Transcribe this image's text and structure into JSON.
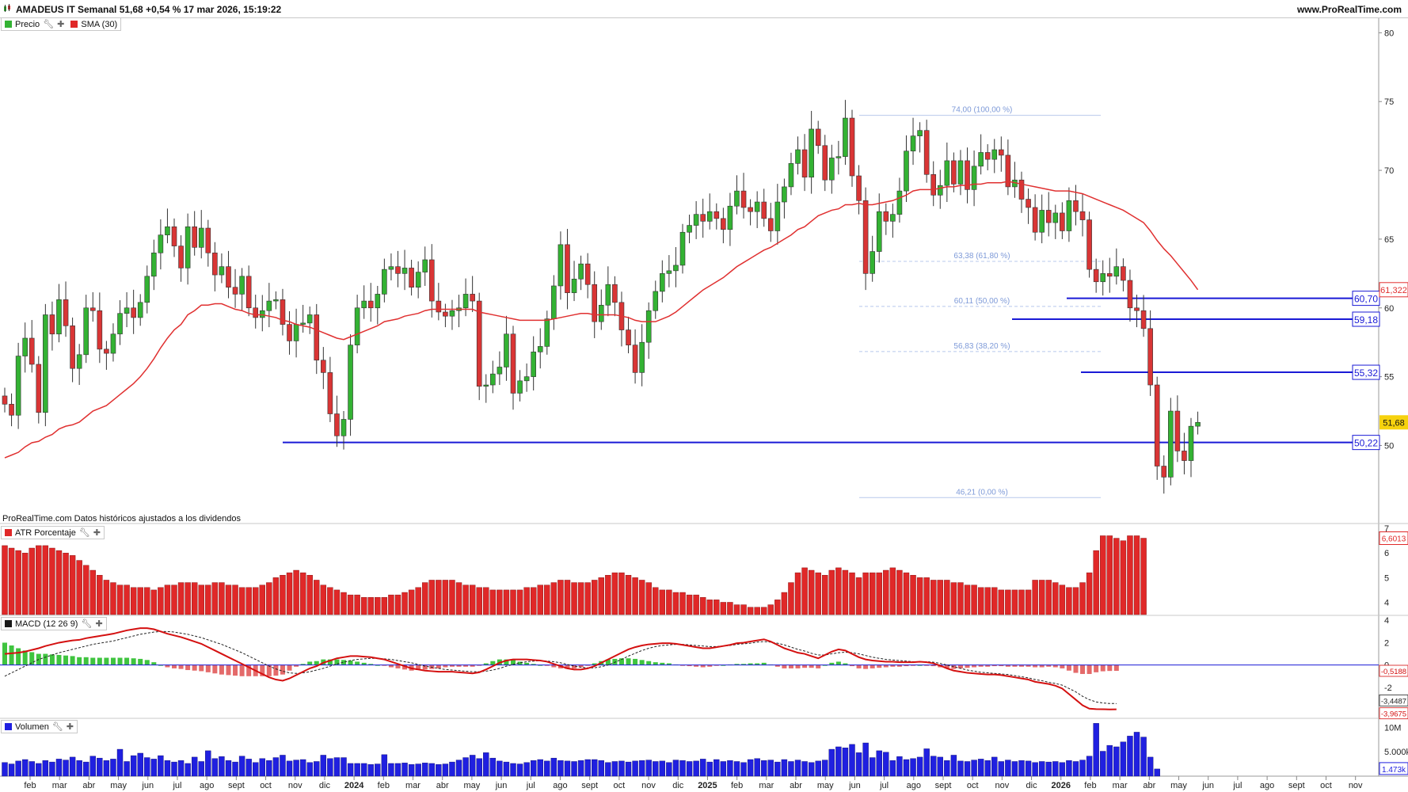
{
  "header": {
    "title": "AMADEUS IT Semanal 51,68 +0,54 % 17 mar 2026, 15:19:22",
    "site": "www.ProRealTime.com"
  },
  "legends": {
    "price": "Precio",
    "sma": "SMA (30)",
    "atr": "ATR Porcentaje",
    "macd": "MACD (12 26 9)",
    "volume": "Volumen"
  },
  "note": "ProRealTime.com Datos históricos ajustados a los dividendos",
  "colors": {
    "bull": "#33b233",
    "bear": "#d93535",
    "sma": "#e03030",
    "level": "#1a1ad6",
    "fib": "#b8c8ec",
    "atr": "#e02828",
    "volume": "#2020e0",
    "macd": "#d41010",
    "signal": "#222222"
  },
  "chart_data": [
    {
      "type": "candlestick",
      "title": "AMADEUS IT Semanal",
      "x_ticks": [
        "feb",
        "mar",
        "abr",
        "may",
        "jun",
        "jul",
        "ago",
        "sept",
        "oct",
        "nov",
        "dic",
        "2024",
        "feb",
        "mar",
        "abr",
        "may",
        "jun",
        "jul",
        "ago",
        "sept",
        "oct",
        "nov",
        "dic",
        "2025",
        "feb",
        "mar",
        "abr",
        "may",
        "jun",
        "jul",
        "ago",
        "sept",
        "oct",
        "nov",
        "dic",
        "2026",
        "feb",
        "mar",
        "abr",
        "may",
        "jun",
        "jul",
        "ago",
        "sept",
        "oct",
        "nov"
      ],
      "y_ticks": [
        50,
        55,
        60,
        65,
        70,
        75,
        80
      ],
      "ylim": [
        44.5,
        81
      ],
      "last_price": "51,68",
      "sma_label": "61,322",
      "close": [
        53.0,
        52.2,
        56.5,
        57.8,
        55.9,
        52.4,
        59.5,
        58.1,
        60.6,
        58.7,
        55.6,
        56.6,
        60.0,
        59.8,
        57.0,
        56.7,
        58.1,
        59.6,
        60.0,
        59.3,
        60.4,
        62.3,
        64.0,
        65.3,
        65.9,
        64.5,
        62.9,
        65.9,
        64.4,
        65.8,
        64.0,
        62.4,
        63.0,
        61.5,
        61.0,
        62.3,
        60.0,
        59.3,
        59.8,
        60.5,
        60.6,
        58.8,
        57.6,
        58.8,
        58.9,
        59.5,
        56.2,
        55.3,
        52.3,
        50.7,
        51.9,
        57.3,
        60.0,
        60.5,
        60.0,
        61.0,
        62.8,
        63.0,
        62.5,
        62.9,
        61.5,
        62.6,
        63.5,
        60.5,
        59.7,
        59.4,
        59.8,
        60.0,
        61.0,
        60.5,
        54.3,
        54.4,
        55.2,
        55.7,
        58.1,
        53.8,
        54.7,
        55.0,
        56.8,
        57.2,
        59.2,
        61.6,
        64.6,
        61.1,
        62.1,
        63.2,
        61.7,
        59.0,
        60.2,
        61.7,
        60.4,
        58.4,
        57.3,
        55.3,
        57.5,
        59.8,
        61.2,
        62.5,
        62.7,
        63.1,
        65.5,
        66.0,
        66.8,
        66.3,
        67.0,
        66.5,
        65.7,
        67.4,
        68.5,
        67.3,
        67.0,
        67.7,
        66.5,
        65.6,
        67.7,
        68.8,
        70.5,
        71.5,
        69.5,
        73.0,
        71.8,
        69.3,
        70.9,
        71.0,
        73.8,
        69.6,
        67.8,
        62.5,
        64.1,
        67.0,
        66.3,
        66.8,
        68.5,
        71.4,
        72.5,
        72.9,
        69.7,
        68.2,
        68.9,
        70.7,
        69.0,
        70.7,
        68.6,
        70.3,
        71.3,
        70.8,
        71.5,
        71.1,
        68.8,
        69.3,
        67.9,
        67.3,
        65.5,
        67.1,
        66.2,
        66.9,
        65.6,
        67.8,
        67.0,
        66.4,
        62.8,
        61.9,
        62.5,
        62.3,
        63.0,
        62.0,
        60.0,
        59.8,
        58.5,
        54.4,
        48.5,
        47.7,
        52.5,
        49.6,
        48.9,
        51.4,
        51.68
      ],
      "sma": [
        49.1,
        49.3,
        49.5,
        49.9,
        50.2,
        50.3,
        50.6,
        50.8,
        51.2,
        51.4,
        51.5,
        51.7,
        52.1,
        52.5,
        52.7,
        52.9,
        53.3,
        53.7,
        54.1,
        54.5,
        55.0,
        55.6,
        56.3,
        57.1,
        57.8,
        58.4,
        58.8,
        59.5,
        59.8,
        60.2,
        60.2,
        60.3,
        60.3,
        60.1,
        59.9,
        59.8,
        59.6,
        59.5,
        59.5,
        59.4,
        59.3,
        59.1,
        59.0,
        58.8,
        58.7,
        58.6,
        58.4,
        58.2,
        58.0,
        57.8,
        57.7,
        57.9,
        58.1,
        58.3,
        58.5,
        58.7,
        59.0,
        59.1,
        59.2,
        59.4,
        59.5,
        59.6,
        59.8,
        59.9,
        59.9,
        59.9,
        59.9,
        59.9,
        59.9,
        59.9,
        59.7,
        59.6,
        59.5,
        59.4,
        59.3,
        59.2,
        59.1,
        59.1,
        59.1,
        59.1,
        59.1,
        59.2,
        59.3,
        59.4,
        59.5,
        59.6,
        59.6,
        59.5,
        59.5,
        59.5,
        59.5,
        59.4,
        59.3,
        59.1,
        59.0,
        59.0,
        59.0,
        59.2,
        59.4,
        59.7,
        60.1,
        60.5,
        60.9,
        61.3,
        61.6,
        61.9,
        62.2,
        62.6,
        63.0,
        63.3,
        63.6,
        63.9,
        64.2,
        64.4,
        64.7,
        65.0,
        65.3,
        65.7,
        65.9,
        66.3,
        66.7,
        66.9,
        67.1,
        67.2,
        67.5,
        67.5,
        67.6,
        67.5,
        67.5,
        67.6,
        67.7,
        67.8,
        68.0,
        68.2,
        68.5,
        68.6,
        68.6,
        68.6,
        68.7,
        68.8,
        68.8,
        68.9,
        68.9,
        69.0,
        69.0,
        69.1,
        69.1,
        69.1,
        69.2,
        69.1,
        69.0,
        68.9,
        68.8,
        68.7,
        68.6,
        68.5,
        68.5,
        68.5,
        68.4,
        68.3,
        68.1,
        67.9,
        67.7,
        67.5,
        67.3,
        67.1,
        66.8,
        66.5,
        66.2,
        65.6,
        64.9,
        64.3,
        63.8,
        63.2,
        62.6,
        62.0,
        61.322
      ],
      "series": [
        {
          "name": "SMA (30)"
        }
      ],
      "levels": [
        {
          "value": 60.7,
          "label": "60,70"
        },
        {
          "value": 59.18,
          "label": "59,18"
        },
        {
          "value": 55.32,
          "label": "55,32"
        },
        {
          "value": 50.22,
          "label": "50,22"
        }
      ],
      "fibonacci": [
        {
          "value": 74.0,
          "label": "74,00 (100,00 %)"
        },
        {
          "value": 63.38,
          "label": "63,38 (61,80 %)"
        },
        {
          "value": 60.11,
          "label": "60,11 (50,00 %)"
        },
        {
          "value": 56.83,
          "label": "56,83 (38,20 %)"
        },
        {
          "value": 46.21,
          "label": "46,21 (0,00 %)"
        }
      ]
    },
    {
      "type": "bar",
      "title": "ATR Porcentaje",
      "y_ticks": [
        4,
        5,
        6,
        7
      ],
      "ylim": [
        3.5,
        7.1
      ],
      "last_value": "6,6013",
      "values": [
        6.3,
        6.2,
        6.1,
        6.0,
        6.2,
        6.3,
        6.3,
        6.2,
        6.1,
        6.0,
        5.9,
        5.7,
        5.5,
        5.3,
        5.1,
        4.9,
        4.8,
        4.7,
        4.7,
        4.6,
        4.6,
        4.6,
        4.5,
        4.6,
        4.7,
        4.7,
        4.8,
        4.8,
        4.8,
        4.7,
        4.7,
        4.8,
        4.8,
        4.7,
        4.7,
        4.6,
        4.6,
        4.6,
        4.7,
        4.8,
        5.0,
        5.1,
        5.2,
        5.3,
        5.2,
        5.1,
        4.9,
        4.7,
        4.6,
        4.5,
        4.4,
        4.3,
        4.3,
        4.2,
        4.2,
        4.2,
        4.2,
        4.3,
        4.3,
        4.4,
        4.5,
        4.6,
        4.8,
        4.9,
        4.9,
        4.9,
        4.9,
        4.8,
        4.7,
        4.7,
        4.6,
        4.6,
        4.5,
        4.5,
        4.5,
        4.5,
        4.5,
        4.6,
        4.6,
        4.7,
        4.7,
        4.8,
        4.9,
        4.9,
        4.8,
        4.8,
        4.8,
        4.9,
        5.0,
        5.1,
        5.2,
        5.2,
        5.1,
        5.0,
        4.9,
        4.8,
        4.6,
        4.5,
        4.5,
        4.4,
        4.4,
        4.3,
        4.3,
        4.2,
        4.1,
        4.1,
        4.0,
        4.0,
        3.9,
        3.9,
        3.8,
        3.8,
        3.8,
        3.9,
        4.1,
        4.4,
        4.8,
        5.2,
        5.4,
        5.3,
        5.2,
        5.1,
        5.3,
        5.4,
        5.3,
        5.2,
        5.0,
        5.2,
        5.2,
        5.2,
        5.3,
        5.4,
        5.3,
        5.2,
        5.1,
        5.0,
        5.0,
        4.9,
        4.9,
        4.9,
        4.8,
        4.8,
        4.7,
        4.7,
        4.6,
        4.6,
        4.6,
        4.5,
        4.5,
        4.5,
        4.5,
        4.5,
        4.9,
        4.9,
        4.9,
        4.8,
        4.7,
        4.6,
        4.6,
        4.8,
        5.2,
        6.1,
        6.7,
        6.7,
        6.6,
        6.5,
        6.7,
        6.7,
        6.6013
      ]
    },
    {
      "type": "line",
      "title": "MACD (12 26 9)",
      "y_ticks": [
        -2,
        0,
        2,
        4
      ],
      "ylim": [
        -4.7,
        4.3
      ],
      "last_values": {
        "histogram": "-0,5188",
        "signal": "-3,4487",
        "macd": "-3,9675"
      },
      "macd": [
        1.0,
        1.05,
        1.1,
        1.2,
        1.35,
        1.5,
        1.7,
        1.85,
        2.0,
        2.1,
        2.2,
        2.25,
        2.4,
        2.5,
        2.6,
        2.7,
        2.8,
        2.95,
        3.1,
        3.2,
        3.3,
        3.3,
        3.2,
        3.0,
        2.8,
        2.65,
        2.5,
        2.3,
        2.1,
        1.9,
        1.6,
        1.3,
        1.0,
        0.7,
        0.4,
        0.1,
        -0.2,
        -0.5,
        -0.8,
        -1.1,
        -1.3,
        -1.4,
        -1.2,
        -0.9,
        -0.6,
        -0.3,
        -0.1,
        0.2,
        0.4,
        0.6,
        0.7,
        0.8,
        0.8,
        0.75,
        0.7,
        0.6,
        0.5,
        0.3,
        0.1,
        -0.1,
        -0.3,
        -0.4,
        -0.5,
        -0.55,
        -0.6,
        -0.6,
        -0.6,
        -0.65,
        -0.7,
        -0.75,
        -0.65,
        -0.4,
        -0.1,
        0.2,
        0.4,
        0.5,
        0.5,
        0.5,
        0.45,
        0.4,
        0.3,
        0.1,
        -0.1,
        -0.3,
        -0.4,
        -0.4,
        -0.3,
        -0.1,
        0.2,
        0.5,
        0.8,
        1.1,
        1.4,
        1.6,
        1.75,
        1.85,
        1.9,
        1.95,
        1.95,
        1.9,
        1.8,
        1.7,
        1.6,
        1.5,
        1.5,
        1.6,
        1.7,
        1.8,
        1.95,
        2.0,
        2.1,
        2.2,
        2.3,
        2.1,
        1.8,
        1.5,
        1.3,
        1.1,
        1.0,
        0.8,
        0.6,
        0.9,
        1.2,
        1.4,
        1.3,
        1.0,
        0.7,
        0.5,
        0.4,
        0.35,
        0.3,
        0.3,
        0.25,
        0.25,
        0.25,
        0.3,
        0.25,
        0.15,
        -0.05,
        -0.3,
        -0.5,
        -0.6,
        -0.7,
        -0.75,
        -0.8,
        -0.85,
        -0.85,
        -0.9,
        -1.0,
        -1.1,
        -1.2,
        -1.3,
        -1.5,
        -1.6,
        -1.7,
        -1.85,
        -2.1,
        -2.6,
        -3.1,
        -3.6,
        -3.9,
        -3.95,
        -3.96,
        -3.97,
        -3.9675
      ],
      "signal": [
        -1.0,
        -0.7,
        -0.4,
        -0.1,
        0.2,
        0.5,
        0.7,
        0.9,
        1.1,
        1.25,
        1.4,
        1.55,
        1.7,
        1.85,
        1.95,
        2.05,
        2.15,
        2.3,
        2.45,
        2.6,
        2.75,
        2.85,
        2.95,
        3.0,
        3.0,
        2.95,
        2.85,
        2.75,
        2.6,
        2.45,
        2.25,
        2.05,
        1.85,
        1.6,
        1.35,
        1.1,
        0.8,
        0.5,
        0.2,
        -0.1,
        -0.35,
        -0.55,
        -0.7,
        -0.75,
        -0.7,
        -0.6,
        -0.45,
        -0.3,
        -0.1,
        0.1,
        0.25,
        0.4,
        0.5,
        0.55,
        0.6,
        0.6,
        0.55,
        0.5,
        0.4,
        0.3,
        0.2,
        0.05,
        -0.1,
        -0.2,
        -0.3,
        -0.4,
        -0.45,
        -0.5,
        -0.55,
        -0.6,
        -0.6,
        -0.55,
        -0.45,
        -0.3,
        -0.1,
        0.05,
        0.2,
        0.3,
        0.35,
        0.4,
        0.35,
        0.3,
        0.2,
        0.05,
        -0.1,
        -0.2,
        -0.25,
        -0.25,
        -0.15,
        0.0,
        0.25,
        0.5,
        0.8,
        1.05,
        1.3,
        1.5,
        1.65,
        1.75,
        1.8,
        1.85,
        1.85,
        1.8,
        1.75,
        1.7,
        1.65,
        1.65,
        1.7,
        1.75,
        1.85,
        1.9,
        1.95,
        2.05,
        2.1,
        2.05,
        1.95,
        1.8,
        1.6,
        1.4,
        1.25,
        1.05,
        0.9,
        0.9,
        1.0,
        1.1,
        1.15,
        1.1,
        1.0,
        0.85,
        0.7,
        0.6,
        0.5,
        0.45,
        0.4,
        0.35,
        0.3,
        0.3,
        0.3,
        0.25,
        0.15,
        0.0,
        -0.15,
        -0.3,
        -0.45,
        -0.55,
        -0.65,
        -0.7,
        -0.75,
        -0.8,
        -0.85,
        -0.95,
        -1.05,
        -1.15,
        -1.3,
        -1.4,
        -1.55,
        -1.65,
        -1.8,
        -2.1,
        -2.4,
        -2.8,
        -3.1,
        -3.3,
        -3.4,
        -3.44,
        -3.4487
      ]
    },
    {
      "type": "bar",
      "title": "Volumen",
      "y_ticks": [
        "10M",
        "5.000k"
      ],
      "ylim": [
        0,
        11.5
      ],
      "last_value": "1.473k",
      "values": [
        2.8,
        2.5,
        3.1,
        3.4,
        3.0,
        2.6,
        3.2,
        2.9,
        3.5,
        3.3,
        3.9,
        3.2,
        2.9,
        4.1,
        3.7,
        3.2,
        3.5,
        5.5,
        3.0,
        4.2,
        4.7,
        3.8,
        3.5,
        4.2,
        3.2,
        2.9,
        3.2,
        2.6,
        3.9,
        3.0,
        5.2,
        3.6,
        4.0,
        3.2,
        2.9,
        4.1,
        3.5,
        2.8,
        3.6,
        3.2,
        3.8,
        4.3,
        3.1,
        3.3,
        3.4,
        2.8,
        3.0,
        4.3,
        3.6,
        3.8,
        3.8,
        2.6,
        2.6,
        2.6,
        2.4,
        2.5,
        4.4,
        2.6,
        2.6,
        2.7,
        2.4,
        2.5,
        2.7,
        2.6,
        2.4,
        2.5,
        2.9,
        3.3,
        3.8,
        4.3,
        3.6,
        4.8,
        3.7,
        3.1,
        2.9,
        2.6,
        2.5,
        2.8,
        3.2,
        3.4,
        3.1,
        3.7,
        3.2,
        3.1,
        3.0,
        3.2,
        3.4,
        3.4,
        3.2,
        2.8,
        3.0,
        3.1,
        2.9,
        3.1,
        3.2,
        3.3,
        3.0,
        3.1,
        2.8,
        3.3,
        3.2,
        3.0,
        3.1,
        3.5,
        2.9,
        3.4,
        3.0,
        3.2,
        3.0,
        2.8,
        3.4,
        3.6,
        3.2,
        3.3,
        2.9,
        3.4,
        3.0,
        3.3,
        3.0,
        2.8,
        3.1,
        3.3,
        5.5,
        6.0,
        5.8,
        6.5,
        4.8,
        6.8,
        3.8,
        5.2,
        4.9,
        3.2,
        4.0,
        3.4,
        3.6,
        3.9,
        5.6,
        4.1,
        3.9,
        3.2,
        4.3,
        3.1,
        3.0,
        3.3,
        3.5,
        3.2,
        3.9,
        3.0,
        3.3,
        3.0,
        3.2,
        3.1,
        2.8,
        3.0,
        2.9,
        3.0,
        2.8,
        3.2,
        3.0,
        3.3,
        4.1,
        10.8,
        5.1,
        6.3,
        6.0,
        7.0,
        8.2,
        9.0,
        8.0,
        3.9,
        1.473
      ]
    }
  ]
}
